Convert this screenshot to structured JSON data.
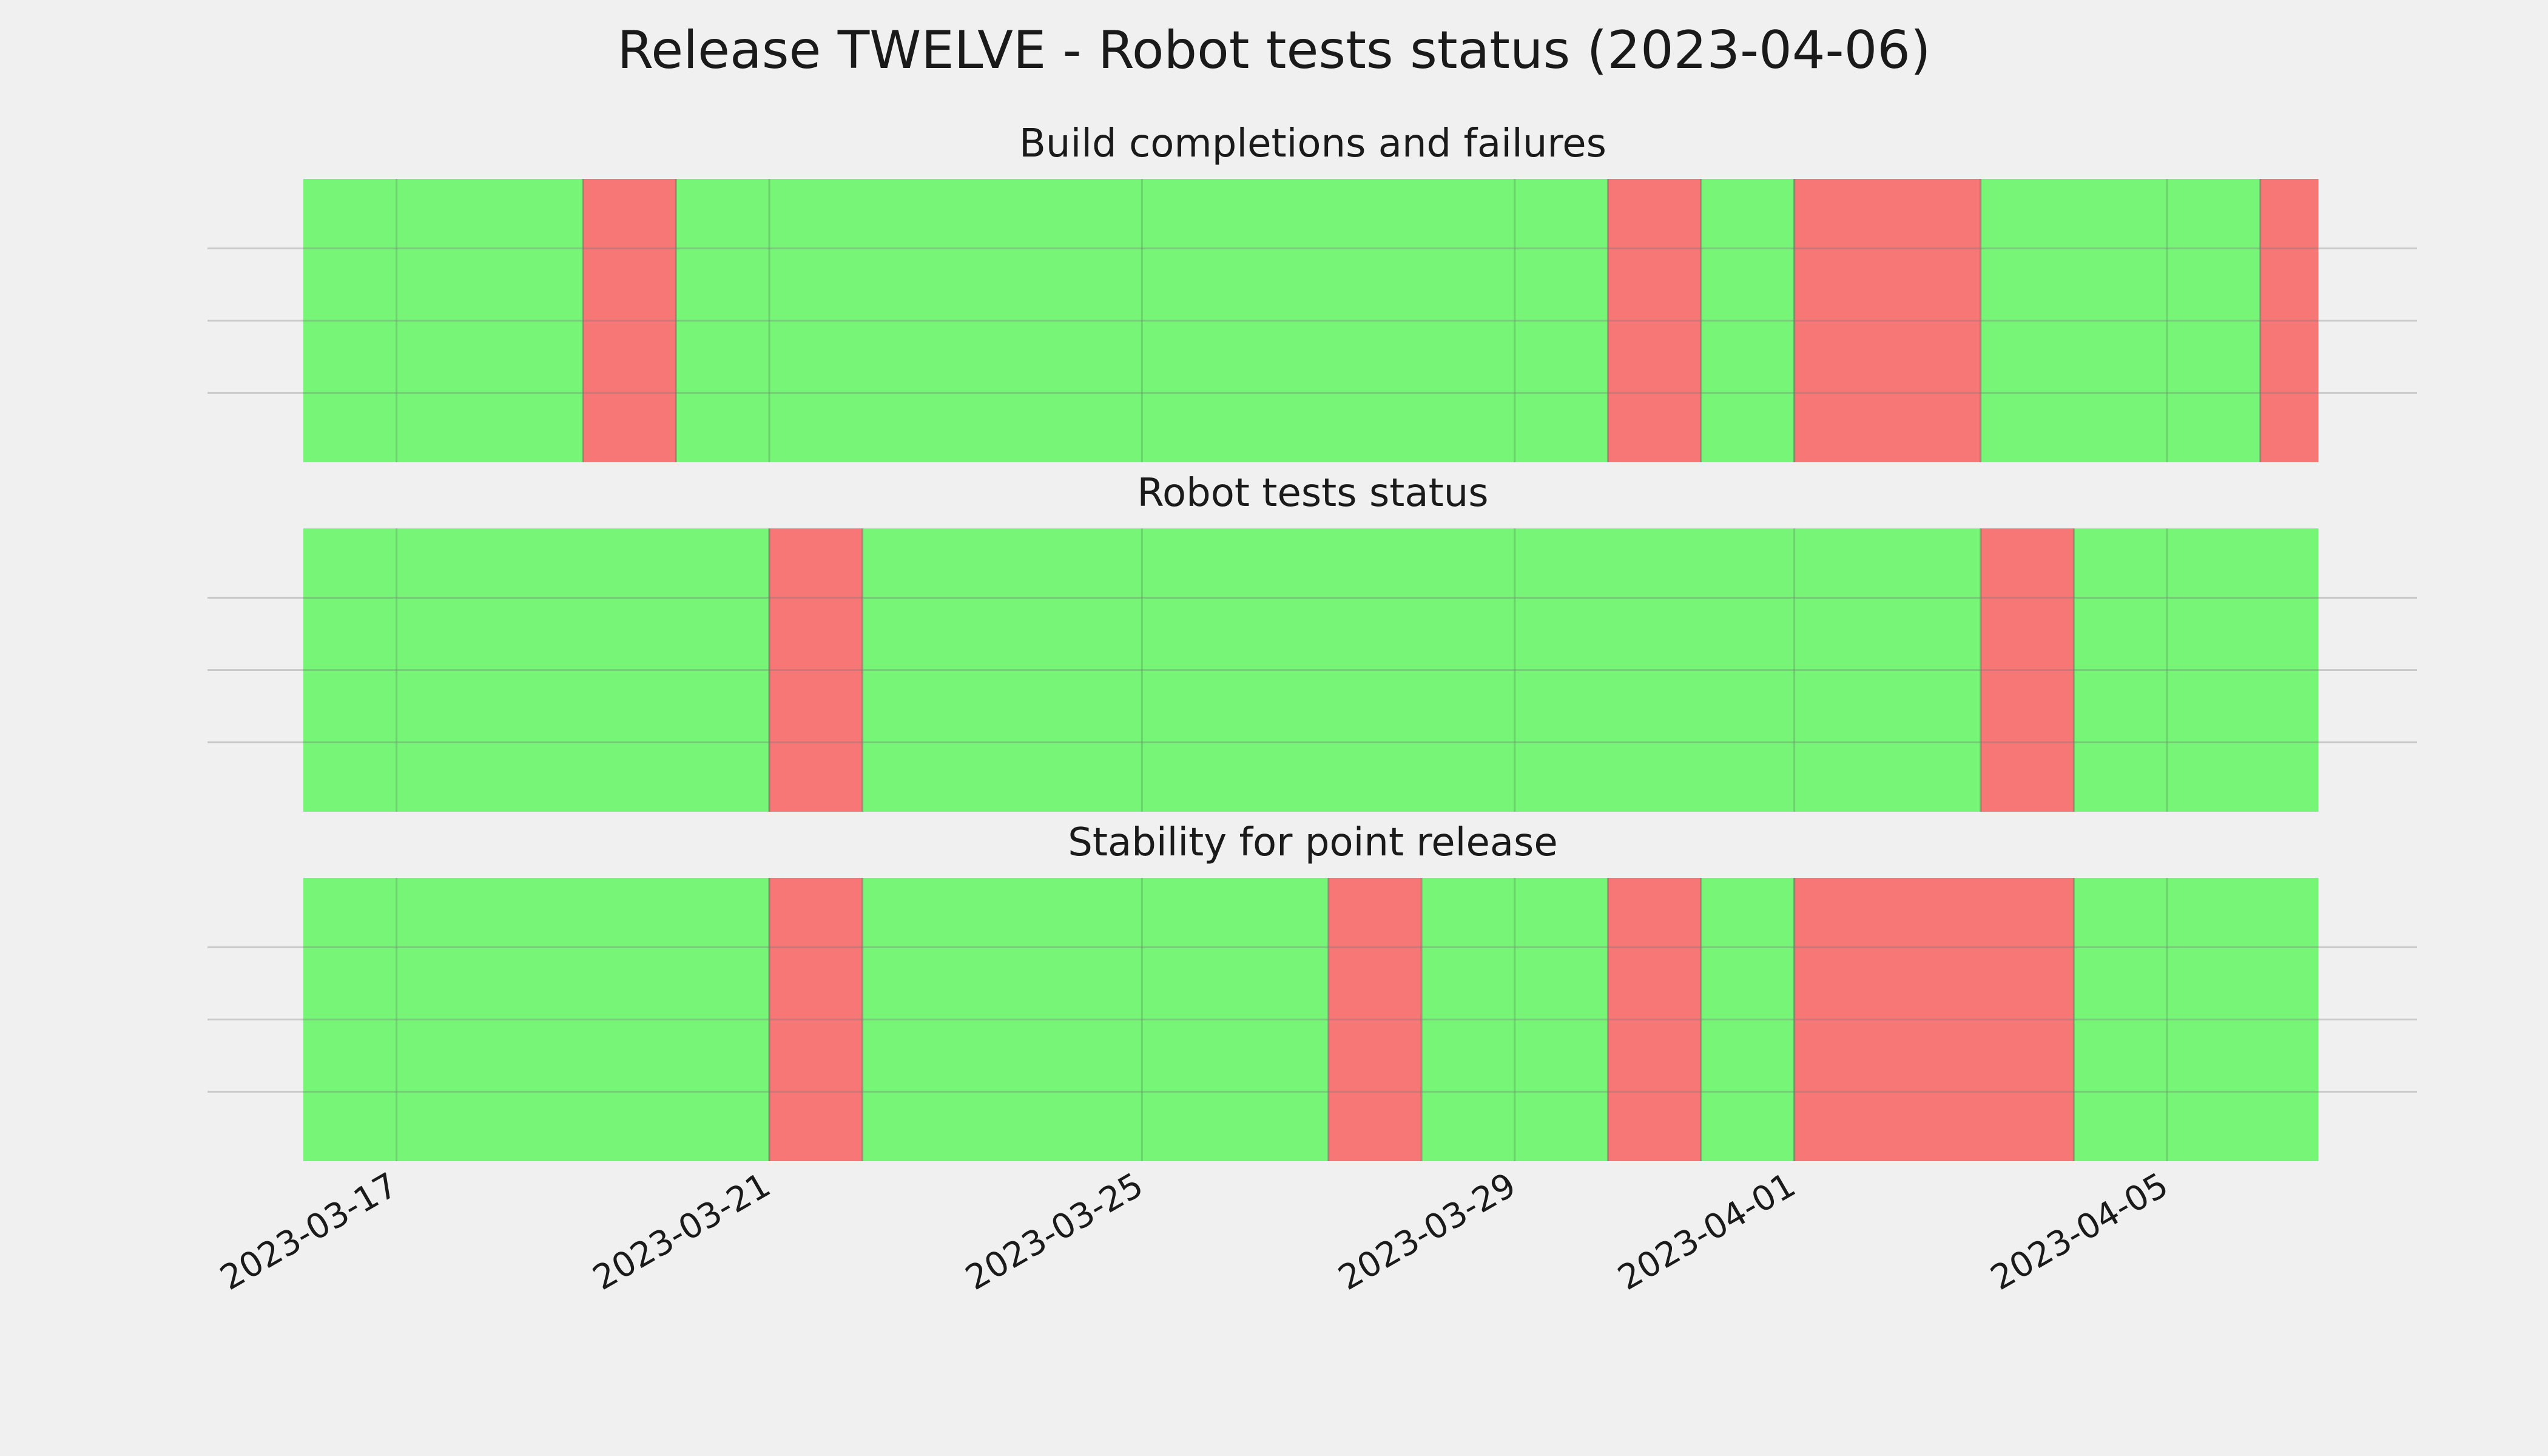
{
  "chart_data": {
    "type": "timeline",
    "title": "Release TWELVE - Robot tests status (2023-04-06)",
    "date_range": [
      "2023-03-16",
      "2023-04-06"
    ],
    "xticks": [
      "2023-03-17",
      "2023-03-21",
      "2023-03-25",
      "2023-03-29",
      "2023-04-01",
      "2023-04-05"
    ],
    "status_colors": {
      "pass": "#76f576",
      "fail": "#f77676"
    },
    "grid": true,
    "panels": [
      {
        "title": "Build completions and failures",
        "segments": [
          {
            "start": "2023-03-16",
            "end": "2023-03-19",
            "status": "pass"
          },
          {
            "start": "2023-03-19",
            "end": "2023-03-20",
            "status": "fail"
          },
          {
            "start": "2023-03-20",
            "end": "2023-03-30",
            "status": "pass"
          },
          {
            "start": "2023-03-30",
            "end": "2023-03-31",
            "status": "fail"
          },
          {
            "start": "2023-03-31",
            "end": "2023-04-01",
            "status": "pass"
          },
          {
            "start": "2023-04-01",
            "end": "2023-04-03",
            "status": "fail"
          },
          {
            "start": "2023-04-03",
            "end": "2023-04-06",
            "status": "pass"
          },
          {
            "start": "2023-04-06",
            "end": "2023-04-06T15:00",
            "status": "fail"
          }
        ]
      },
      {
        "title": "Robot tests status",
        "segments": [
          {
            "start": "2023-03-16",
            "end": "2023-03-21",
            "status": "pass"
          },
          {
            "start": "2023-03-21",
            "end": "2023-03-22",
            "status": "fail"
          },
          {
            "start": "2023-03-22",
            "end": "2023-04-03",
            "status": "pass"
          },
          {
            "start": "2023-04-03",
            "end": "2023-04-04",
            "status": "fail"
          },
          {
            "start": "2023-04-04",
            "end": "2023-04-06T15:00",
            "status": "pass"
          }
        ]
      },
      {
        "title": "Stability for point release",
        "segments": [
          {
            "start": "2023-03-16",
            "end": "2023-03-21",
            "status": "pass"
          },
          {
            "start": "2023-03-21",
            "end": "2023-03-22",
            "status": "fail"
          },
          {
            "start": "2023-03-22",
            "end": "2023-03-27",
            "status": "pass"
          },
          {
            "start": "2023-03-27",
            "end": "2023-03-28",
            "status": "fail"
          },
          {
            "start": "2023-03-28",
            "end": "2023-03-30",
            "status": "pass"
          },
          {
            "start": "2023-03-30",
            "end": "2023-03-31",
            "status": "fail"
          },
          {
            "start": "2023-03-31",
            "end": "2023-04-01",
            "status": "pass"
          },
          {
            "start": "2023-04-01",
            "end": "2023-04-04",
            "status": "fail"
          },
          {
            "start": "2023-04-04",
            "end": "2023-04-06T15:00",
            "status": "pass"
          }
        ]
      }
    ]
  }
}
